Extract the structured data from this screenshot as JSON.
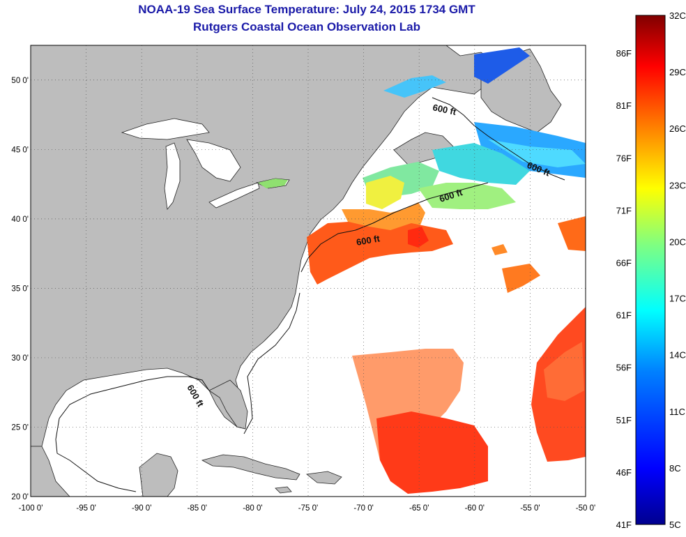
{
  "title": {
    "line1": "NOAA-19 Sea Surface Temperature:  July 24, 2015 1734 GMT",
    "line2": "Rutgers Coastal Ocean Observation Lab"
  },
  "map": {
    "lon_range": [
      -100,
      -50
    ],
    "lat_range": [
      20,
      52.5
    ],
    "lon_ticks": [
      {
        "value": -100,
        "label": "-100 0'"
      },
      {
        "value": -95,
        "label": "-95 0'"
      },
      {
        "value": -90,
        "label": "-90 0'"
      },
      {
        "value": -85,
        "label": "-85 0'"
      },
      {
        "value": -80,
        "label": "-80 0'"
      },
      {
        "value": -75,
        "label": "-75 0'"
      },
      {
        "value": -70,
        "label": "-70 0'"
      },
      {
        "value": -65,
        "label": "-65 0'"
      },
      {
        "value": -60,
        "label": "-60 0'"
      },
      {
        "value": -55,
        "label": "-55 0'"
      },
      {
        "value": -50,
        "label": "-50 0'"
      }
    ],
    "lat_ticks": [
      {
        "value": 20,
        "label": "20 0'"
      },
      {
        "value": 25,
        "label": "25 0'"
      },
      {
        "value": 30,
        "label": "30 0'"
      },
      {
        "value": 35,
        "label": "35 0'"
      },
      {
        "value": 40,
        "label": "40 0'"
      },
      {
        "value": 45,
        "label": "45 0'"
      },
      {
        "value": 50,
        "label": "50 0'"
      }
    ],
    "contour_label": "600 ft",
    "land_color": "#bdbdbd",
    "ocean_color": "#ffffff",
    "grid": true
  },
  "colorbar": {
    "min_c": 5,
    "max_c": 32,
    "celsius": [
      {
        "value": 5,
        "label": "5C"
      },
      {
        "value": 8,
        "label": "8C"
      },
      {
        "value": 11,
        "label": "11C"
      },
      {
        "value": 14,
        "label": "14C"
      },
      {
        "value": 17,
        "label": "17C"
      },
      {
        "value": 20,
        "label": "20C"
      },
      {
        "value": 23,
        "label": "23C"
      },
      {
        "value": 26,
        "label": "26C"
      },
      {
        "value": 29,
        "label": "29C"
      },
      {
        "value": 32,
        "label": "32C"
      }
    ],
    "fahrenheit": [
      {
        "value": 41,
        "label": "41F"
      },
      {
        "value": 46,
        "label": "46F"
      },
      {
        "value": 51,
        "label": "51F"
      },
      {
        "value": 56,
        "label": "56F"
      },
      {
        "value": 61,
        "label": "61F"
      },
      {
        "value": 66,
        "label": "66F"
      },
      {
        "value": 71,
        "label": "71F"
      },
      {
        "value": 76,
        "label": "76F"
      },
      {
        "value": 81,
        "label": "81F"
      },
      {
        "value": 86,
        "label": "86F"
      }
    ],
    "colors": [
      "#00008f",
      "#0000ff",
      "#0080ff",
      "#00ffff",
      "#80ff80",
      "#ffff00",
      "#ff8000",
      "#ff0000",
      "#800000"
    ]
  }
}
